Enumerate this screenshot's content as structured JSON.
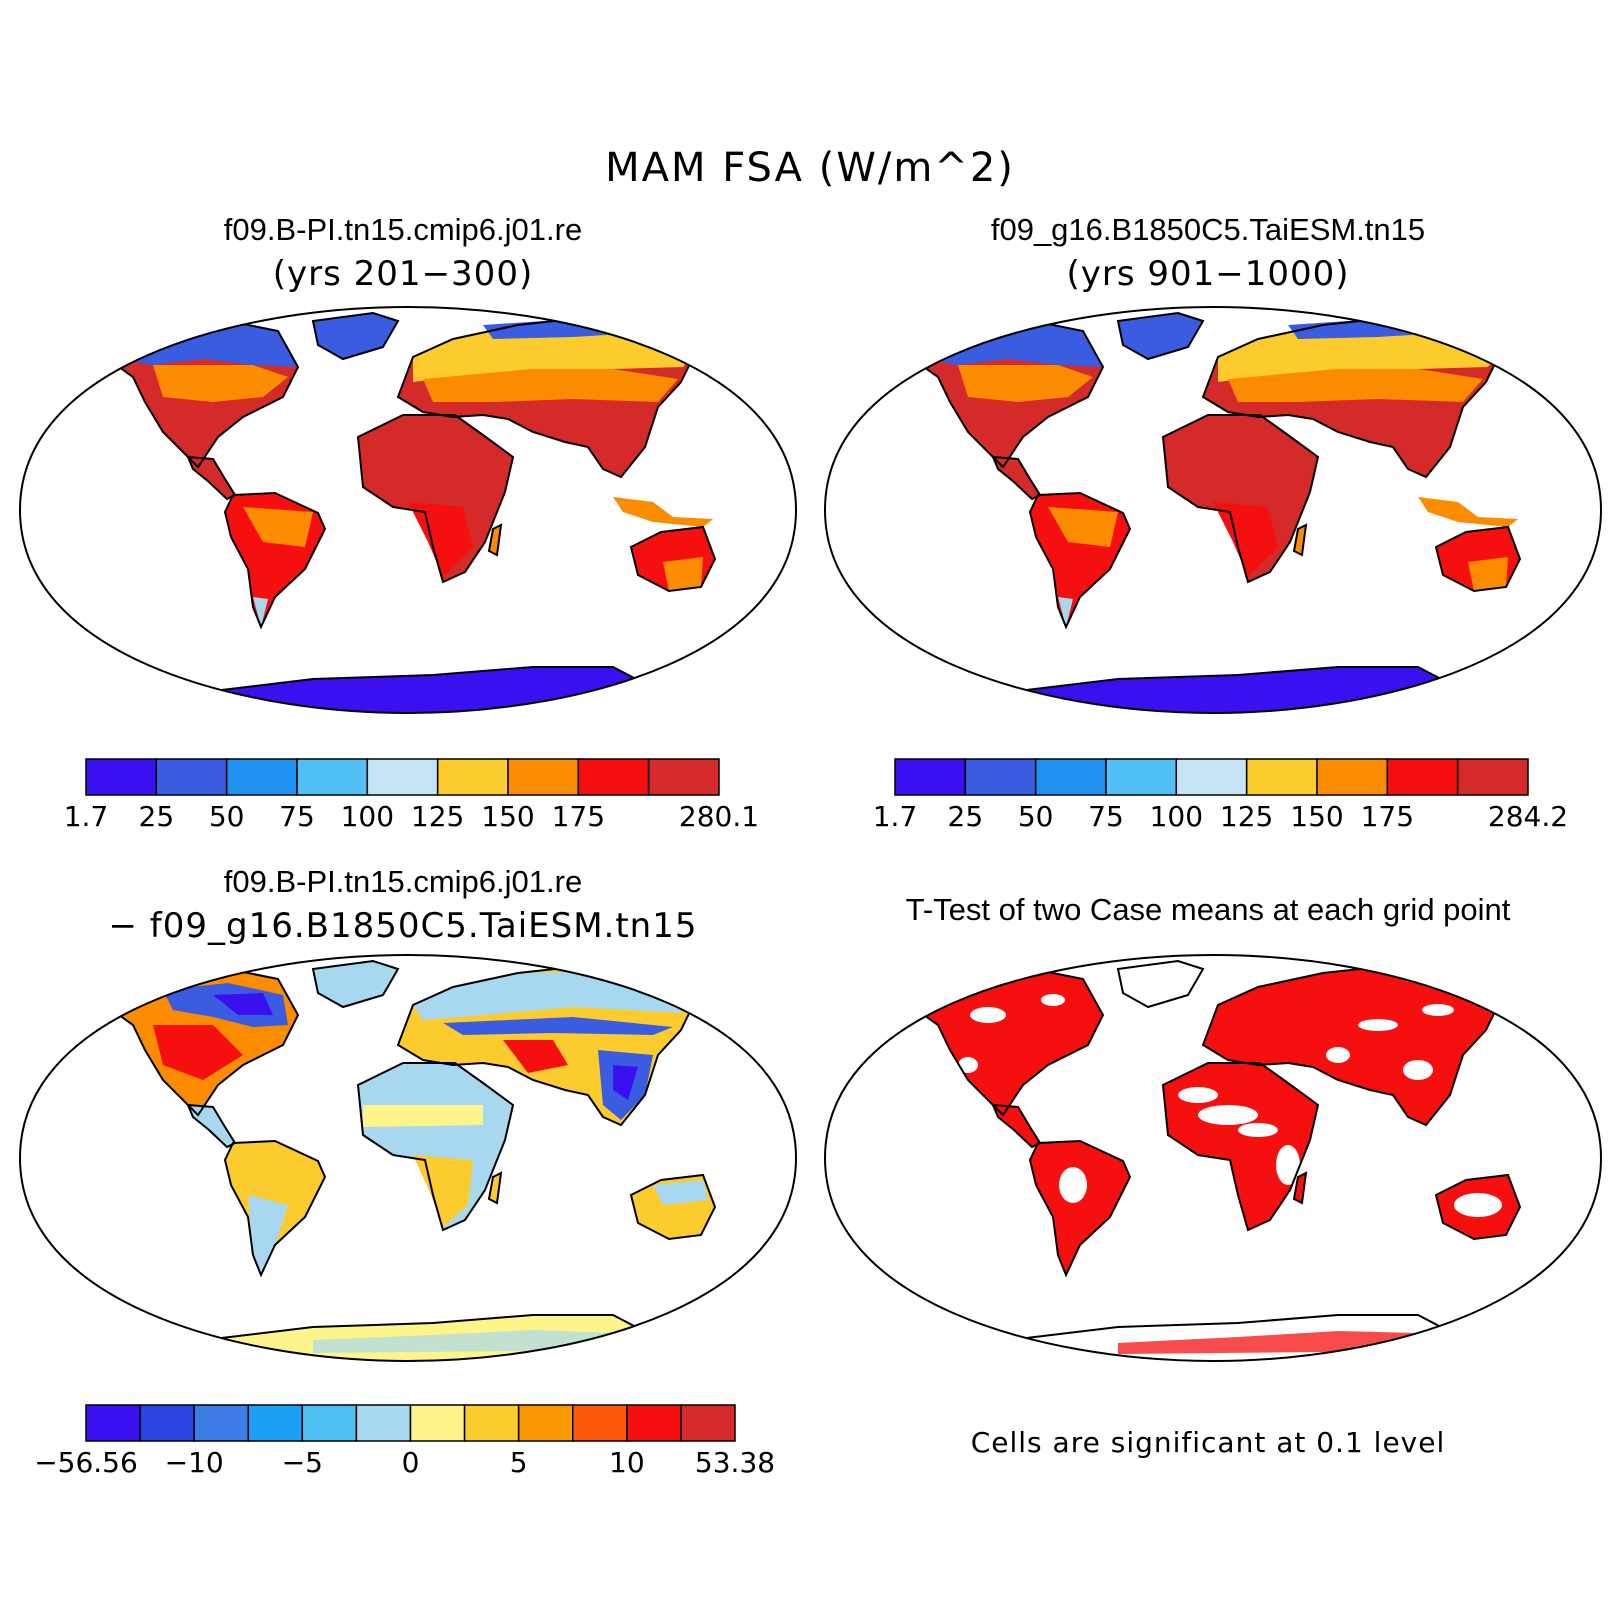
{
  "figure": {
    "title": "MAM FSA (W/m^2)"
  },
  "panels": {
    "top_left": {
      "title": "f09.B-PI.tn15.cmip6.j01.re",
      "subtitle": "(yrs 201−300)"
    },
    "top_right": {
      "title": "f09_g16.B1850C5.TaiESM.tn15",
      "subtitle": "(yrs 901−1000)"
    },
    "bottom_left": {
      "title": "f09.B-PI.tn15.cmip6.j01.re",
      "subtitle": "− f09_g16.B1850C5.TaiESM.tn15"
    },
    "bottom_right": {
      "title": "T-Test of two Case means at each grid point",
      "note": "Cells are significant at 0.1 level"
    }
  },
  "colorbars": {
    "top_left": {
      "colors": [
        "#3a0ff0",
        "#3a5ce0",
        "#1e90f0",
        "#50c0f5",
        "#c6e4f5",
        "#fccc2e",
        "#fb8c00",
        "#f50f0f",
        "#d42a2a"
      ],
      "labels": [
        "1.7",
        "25",
        "50",
        "75",
        "100",
        "125",
        "150",
        "175",
        "280.1"
      ]
    },
    "top_right": {
      "colors": [
        "#3a0ff0",
        "#3a5ce0",
        "#1e90f0",
        "#50c0f5",
        "#c6e4f5",
        "#fccc2e",
        "#fb8c00",
        "#f50f0f",
        "#d42a2a"
      ],
      "labels": [
        "1.7",
        "25",
        "50",
        "75",
        "100",
        "125",
        "150",
        "175",
        "284.2"
      ]
    },
    "bottom_left": {
      "colors": [
        "#3a0ff0",
        "#2d45e0",
        "#3c7de8",
        "#1aa0f5",
        "#50c0f5",
        "#a8d8f0",
        "#fdf58a",
        "#fccc2e",
        "#fb9a00",
        "#fa5a0a",
        "#f50f0f",
        "#d42a2a"
      ],
      "labels": [
        "−56.56",
        "−10",
        "−5",
        "0",
        "5",
        "10",
        "53.38"
      ]
    }
  },
  "map_colors": {
    "red_dark": "#d42a2a",
    "red": "#f50f0f",
    "orange": "#fb8c00",
    "yellow": "#fccc2e",
    "pale_yellow": "#fdf58a",
    "light_blue": "#a8d8f0",
    "blue": "#3a5ce0",
    "violet": "#3a0ff0"
  }
}
